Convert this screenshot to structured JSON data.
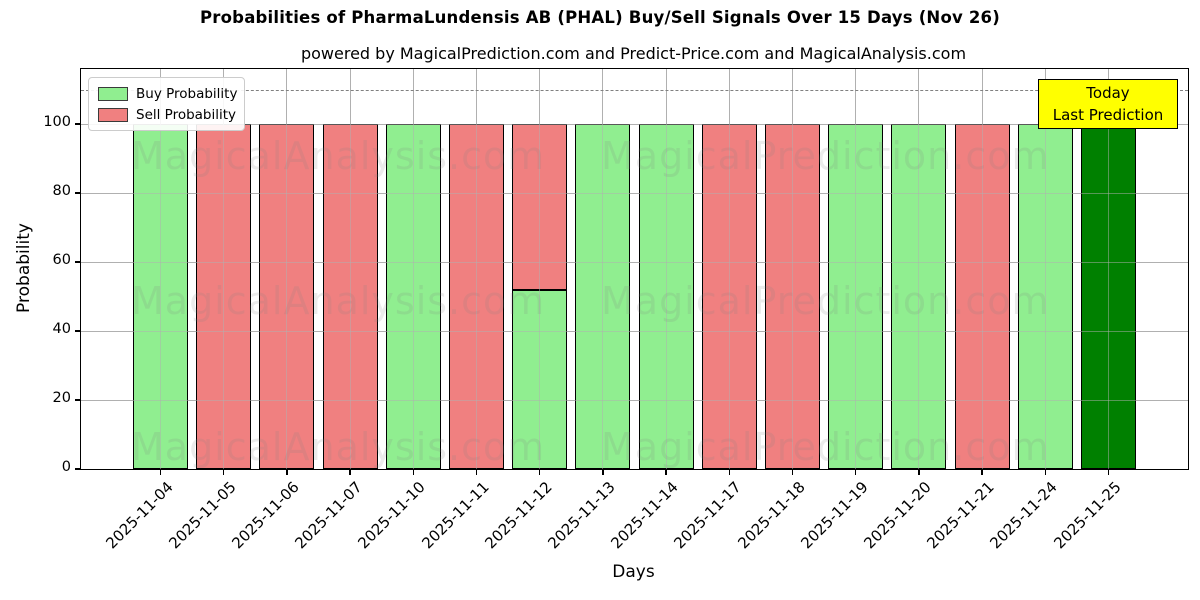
{
  "chart_data": {
    "type": "bar",
    "stacked": true,
    "title": "Probabilities of PharmaLundensis AB (PHAL) Buy/Sell Signals Over 15 Days (Nov 26)",
    "subtitle": "powered by MagicalPrediction.com and Predict-Price.com and MagicalAnalysis.com",
    "xlabel": "Days",
    "ylabel": "Probability",
    "ylim": [
      0,
      116
    ],
    "yticks": [
      0,
      20,
      40,
      60,
      80,
      100
    ],
    "grid": true,
    "dashed_line_y": 110,
    "legend_position": "upper left",
    "categories": [
      "2025-11-04",
      "2025-11-05",
      "2025-11-06",
      "2025-11-07",
      "2025-11-10",
      "2025-11-11",
      "2025-11-12",
      "2025-11-13",
      "2025-11-14",
      "2025-11-17",
      "2025-11-18",
      "2025-11-19",
      "2025-11-20",
      "2025-11-21",
      "2025-11-24",
      "2025-11-25"
    ],
    "series": [
      {
        "name": "Buy Probability",
        "color": "#90EE90",
        "values": [
          100,
          0,
          0,
          0,
          100,
          0,
          52,
          100,
          100,
          0,
          0,
          100,
          100,
          0,
          100,
          100
        ]
      },
      {
        "name": "Sell Probability",
        "color": "#F08080",
        "values": [
          0,
          100,
          100,
          100,
          0,
          100,
          48,
          0,
          0,
          100,
          100,
          0,
          0,
          100,
          0,
          0
        ]
      }
    ],
    "today_index": 15,
    "today_color": "#008000",
    "annotation": {
      "lines": [
        "Today",
        "Last Prediction"
      ],
      "bg_color": "#FFFF00"
    },
    "watermark": {
      "texts": [
        "MagicalAnalysis.com",
        "MagicalPrediction.com"
      ],
      "color": "#808080"
    },
    "colors": {
      "grid": "#B0B0B0",
      "dashed_line": "#808080",
      "bar_edge": "#000000"
    }
  }
}
